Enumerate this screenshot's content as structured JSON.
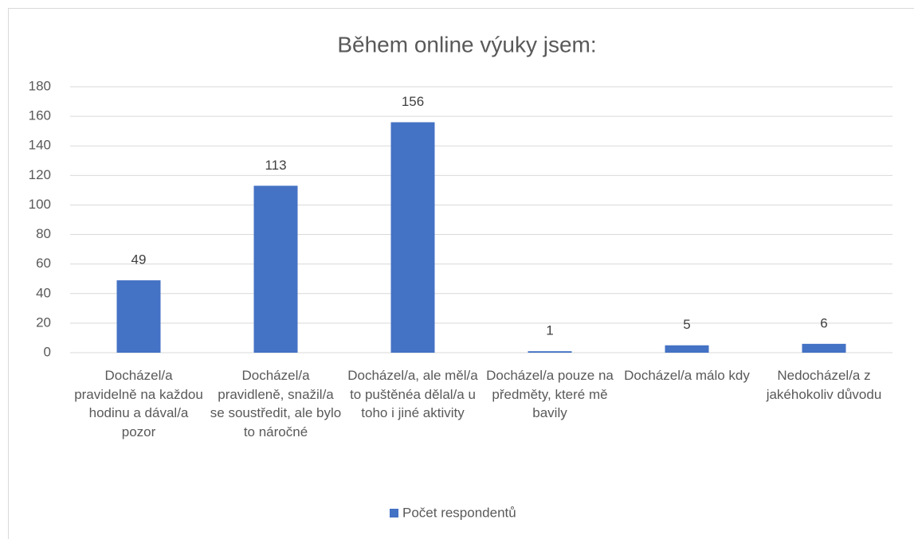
{
  "chart_data": {
    "type": "bar",
    "title": "Během online výuky jsem:",
    "categories": [
      "Docházel/a pravidelně na každou hodinu a dával/a pozor",
      "Docházel/a pravidleně, snažil/a se soustředit, ale bylo to náročné",
      "Docházel/a, ale měl/a to puštěnéa dělal/a u toho i jiné aktivity",
      "Docházel/a pouze na předměty, které mě bavily",
      "Docházel/a málo kdy",
      "Nedocházel/a z jakéhokoliv důvodu"
    ],
    "series": [
      {
        "name": "Počet respondentů",
        "color": "#4472c4",
        "values": [
          49,
          113,
          156,
          1,
          5,
          6
        ]
      }
    ],
    "ylim": [
      0,
      180
    ],
    "yticks": [
      0,
      20,
      40,
      60,
      80,
      100,
      120,
      140,
      160,
      180
    ],
    "grid": true,
    "legend": "bottom"
  }
}
